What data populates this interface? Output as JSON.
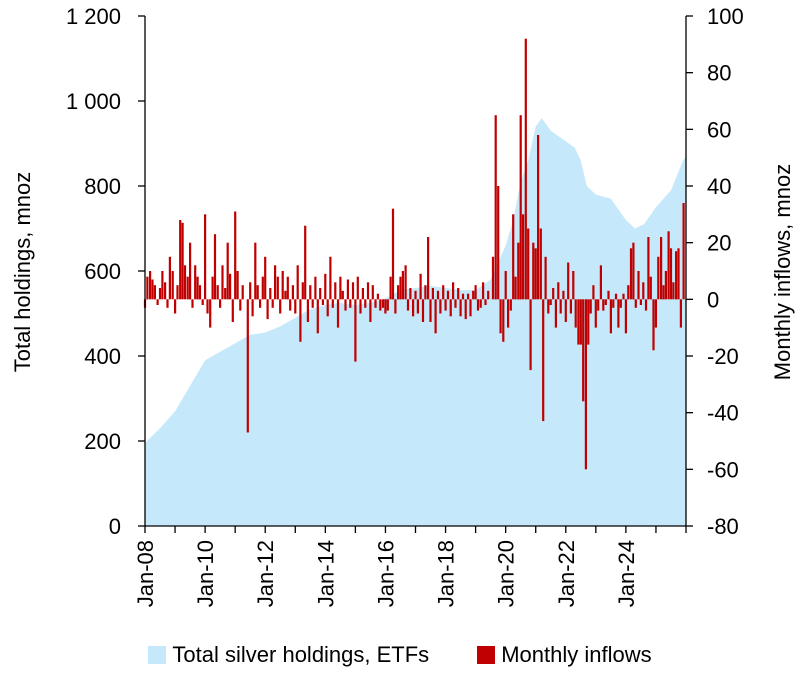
{
  "chart_data": {
    "type": "bar+area",
    "title": "",
    "x_tick_labels": [
      "Jan-08",
      "Jan-10",
      "Jan-12",
      "Jan-14",
      "Jan-16",
      "Jan-18",
      "Jan-20",
      "Jan-22",
      "Jan-24"
    ],
    "left_axis": {
      "label": "Total holdings, mnoz",
      "range": [
        0,
        1200
      ],
      "ticks": [
        0,
        200,
        400,
        600,
        800,
        1000,
        1200
      ],
      "tick_labels": [
        "0",
        "200",
        "400",
        "600",
        "800",
        "1 000",
        "1 200"
      ]
    },
    "right_axis": {
      "label": "Monthly inflows, mnoz",
      "range": [
        -80,
        100
      ],
      "ticks": [
        -80,
        -60,
        -40,
        -20,
        0,
        20,
        40,
        60,
        80,
        100
      ],
      "tick_labels": [
        "-80",
        "-60",
        "-40",
        "-20",
        "0",
        "20",
        "40",
        "60",
        "80",
        "100"
      ]
    },
    "x_range_years": [
      2008.0,
      2026.0
    ],
    "series": [
      {
        "name": "Total silver holdings, ETFs",
        "type": "area",
        "axis": "left",
        "color": "#c5e9fa",
        "points": [
          [
            2008.0,
            195
          ],
          [
            2008.5,
            230
          ],
          [
            2009.0,
            270
          ],
          [
            2009.5,
            330
          ],
          [
            2010.0,
            390
          ],
          [
            2010.5,
            410
          ],
          [
            2011.0,
            430
          ],
          [
            2011.5,
            450
          ],
          [
            2012.0,
            455
          ],
          [
            2012.5,
            470
          ],
          [
            2013.0,
            490
          ],
          [
            2013.5,
            510
          ],
          [
            2014.0,
            520
          ],
          [
            2014.5,
            525
          ],
          [
            2015.0,
            520
          ],
          [
            2015.5,
            525
          ],
          [
            2016.0,
            535
          ],
          [
            2016.5,
            555
          ],
          [
            2017.0,
            560
          ],
          [
            2017.5,
            565
          ],
          [
            2018.0,
            560
          ],
          [
            2018.5,
            555
          ],
          [
            2019.0,
            555
          ],
          [
            2019.5,
            580
          ],
          [
            2020.0,
            660
          ],
          [
            2020.25,
            720
          ],
          [
            2020.5,
            810
          ],
          [
            2020.75,
            860
          ],
          [
            2021.0,
            940
          ],
          [
            2021.2,
            960
          ],
          [
            2021.5,
            930
          ],
          [
            2022.0,
            905
          ],
          [
            2022.3,
            890
          ],
          [
            2022.5,
            860
          ],
          [
            2022.7,
            800
          ],
          [
            2023.0,
            780
          ],
          [
            2023.5,
            770
          ],
          [
            2024.0,
            720
          ],
          [
            2024.3,
            700
          ],
          [
            2024.6,
            710
          ],
          [
            2025.0,
            750
          ],
          [
            2025.5,
            790
          ],
          [
            2025.9,
            860
          ],
          [
            2026.0,
            870
          ]
        ]
      },
      {
        "name": "Monthly inflows",
        "type": "bar",
        "axis": "right",
        "color": "#c00000",
        "bars": [
          [
            2008.0,
            -3
          ],
          [
            2008.08,
            8
          ],
          [
            2008.17,
            10
          ],
          [
            2008.25,
            7
          ],
          [
            2008.33,
            5
          ],
          [
            2008.42,
            -2
          ],
          [
            2008.5,
            4
          ],
          [
            2008.58,
            10
          ],
          [
            2008.67,
            6
          ],
          [
            2008.75,
            -3
          ],
          [
            2008.83,
            15
          ],
          [
            2008.92,
            10
          ],
          [
            2009.0,
            -5
          ],
          [
            2009.08,
            5
          ],
          [
            2009.17,
            28
          ],
          [
            2009.25,
            27
          ],
          [
            2009.33,
            12
          ],
          [
            2009.42,
            8
          ],
          [
            2009.5,
            20
          ],
          [
            2009.58,
            -3
          ],
          [
            2009.67,
            12
          ],
          [
            2009.75,
            8
          ],
          [
            2009.83,
            5
          ],
          [
            2009.92,
            -2
          ],
          [
            2010.0,
            30
          ],
          [
            2010.08,
            -5
          ],
          [
            2010.17,
            -10
          ],
          [
            2010.25,
            8
          ],
          [
            2010.33,
            23
          ],
          [
            2010.42,
            5
          ],
          [
            2010.5,
            -3
          ],
          [
            2010.58,
            12
          ],
          [
            2010.67,
            4
          ],
          [
            2010.75,
            20
          ],
          [
            2010.83,
            9
          ],
          [
            2010.92,
            -8
          ],
          [
            2011.0,
            31
          ],
          [
            2011.08,
            10
          ],
          [
            2011.17,
            -4
          ],
          [
            2011.25,
            5
          ],
          [
            2011.42,
            -47
          ],
          [
            2011.5,
            6
          ],
          [
            2011.58,
            -6
          ],
          [
            2011.67,
            20
          ],
          [
            2011.75,
            5
          ],
          [
            2011.83,
            -3
          ],
          [
            2011.92,
            8
          ],
          [
            2012.0,
            15
          ],
          [
            2012.08,
            -7
          ],
          [
            2012.17,
            4
          ],
          [
            2012.25,
            -3
          ],
          [
            2012.33,
            12
          ],
          [
            2012.42,
            8
          ],
          [
            2012.5,
            -5
          ],
          [
            2012.58,
            10
          ],
          [
            2012.67,
            3
          ],
          [
            2012.75,
            8
          ],
          [
            2012.83,
            -4
          ],
          [
            2012.92,
            5
          ],
          [
            2013.0,
            -5
          ],
          [
            2013.08,
            12
          ],
          [
            2013.17,
            -15
          ],
          [
            2013.25,
            6
          ],
          [
            2013.33,
            26
          ],
          [
            2013.42,
            -8
          ],
          [
            2013.5,
            5
          ],
          [
            2013.58,
            -3
          ],
          [
            2013.67,
            8
          ],
          [
            2013.75,
            -12
          ],
          [
            2013.83,
            4
          ],
          [
            2013.92,
            -2
          ],
          [
            2014.0,
            9
          ],
          [
            2014.08,
            -6
          ],
          [
            2014.17,
            15
          ],
          [
            2014.25,
            -3
          ],
          [
            2014.33,
            6
          ],
          [
            2014.42,
            -10
          ],
          [
            2014.5,
            8
          ],
          [
            2014.58,
            3
          ],
          [
            2014.67,
            -4
          ],
          [
            2014.75,
            7
          ],
          [
            2014.83,
            -3
          ],
          [
            2014.92,
            6
          ],
          [
            2015.0,
            -22
          ],
          [
            2015.08,
            8
          ],
          [
            2015.17,
            -5
          ],
          [
            2015.25,
            4
          ],
          [
            2015.33,
            -3
          ],
          [
            2015.42,
            6
          ],
          [
            2015.5,
            -8
          ],
          [
            2015.58,
            5
          ],
          [
            2015.67,
            -3
          ],
          [
            2015.75,
            2
          ],
          [
            2015.83,
            -4
          ],
          [
            2015.92,
            -3
          ],
          [
            2016.0,
            -5
          ],
          [
            2016.08,
            -4
          ],
          [
            2016.17,
            8
          ],
          [
            2016.25,
            32
          ],
          [
            2016.33,
            -5
          ],
          [
            2016.42,
            5
          ],
          [
            2016.5,
            8
          ],
          [
            2016.58,
            10
          ],
          [
            2016.67,
            12
          ],
          [
            2016.75,
            -4
          ],
          [
            2016.83,
            4
          ],
          [
            2016.92,
            -6
          ],
          [
            2017.0,
            3
          ],
          [
            2017.08,
            -5
          ],
          [
            2017.17,
            9
          ],
          [
            2017.25,
            -8
          ],
          [
            2017.33,
            5
          ],
          [
            2017.42,
            22
          ],
          [
            2017.5,
            -8
          ],
          [
            2017.58,
            4
          ],
          [
            2017.67,
            -12
          ],
          [
            2017.75,
            3
          ],
          [
            2017.83,
            -5
          ],
          [
            2017.92,
            5
          ],
          [
            2018.0,
            -4
          ],
          [
            2018.08,
            3
          ],
          [
            2018.17,
            -6
          ],
          [
            2018.25,
            6
          ],
          [
            2018.33,
            -3
          ],
          [
            2018.42,
            4
          ],
          [
            2018.5,
            -6
          ],
          [
            2018.58,
            2
          ],
          [
            2018.67,
            -7
          ],
          [
            2018.75,
            2
          ],
          [
            2018.83,
            -6
          ],
          [
            2018.92,
            3
          ],
          [
            2019.0,
            5
          ],
          [
            2019.08,
            -4
          ],
          [
            2019.17,
            -3
          ],
          [
            2019.25,
            6
          ],
          [
            2019.33,
            -2
          ],
          [
            2019.42,
            3
          ],
          [
            2019.58,
            15
          ],
          [
            2019.67,
            65
          ],
          [
            2019.75,
            40
          ],
          [
            2019.83,
            -12
          ],
          [
            2019.92,
            -15
          ],
          [
            2020.0,
            10
          ],
          [
            2020.08,
            -10
          ],
          [
            2020.17,
            -4
          ],
          [
            2020.25,
            30
          ],
          [
            2020.33,
            8
          ],
          [
            2020.42,
            20
          ],
          [
            2020.5,
            65
          ],
          [
            2020.58,
            30
          ],
          [
            2020.67,
            92
          ],
          [
            2020.75,
            25
          ],
          [
            2020.83,
            -25
          ],
          [
            2020.92,
            20
          ],
          [
            2021.0,
            18
          ],
          [
            2021.08,
            58
          ],
          [
            2021.17,
            25
          ],
          [
            2021.25,
            -43
          ],
          [
            2021.33,
            15
          ],
          [
            2021.42,
            -5
          ],
          [
            2021.5,
            -2
          ],
          [
            2021.58,
            4
          ],
          [
            2021.67,
            -10
          ],
          [
            2021.75,
            6
          ],
          [
            2021.83,
            -5
          ],
          [
            2021.92,
            3
          ],
          [
            2022.0,
            -8
          ],
          [
            2022.08,
            13
          ],
          [
            2022.17,
            -5
          ],
          [
            2022.25,
            10
          ],
          [
            2022.33,
            -10
          ],
          [
            2022.42,
            -16
          ],
          [
            2022.5,
            -16
          ],
          [
            2022.58,
            -36
          ],
          [
            2022.67,
            -60
          ],
          [
            2022.75,
            -16
          ],
          [
            2022.83,
            -5
          ],
          [
            2022.92,
            5
          ],
          [
            2023.0,
            -10
          ],
          [
            2023.08,
            -4
          ],
          [
            2023.17,
            12
          ],
          [
            2023.25,
            -4
          ],
          [
            2023.33,
            -2
          ],
          [
            2023.42,
            3
          ],
          [
            2023.5,
            -12
          ],
          [
            2023.58,
            -3
          ],
          [
            2023.67,
            2
          ],
          [
            2023.75,
            -10
          ],
          [
            2023.83,
            -3
          ],
          [
            2023.92,
            2
          ],
          [
            2024.0,
            -12
          ],
          [
            2024.08,
            5
          ],
          [
            2024.17,
            18
          ],
          [
            2024.25,
            20
          ],
          [
            2024.33,
            -3
          ],
          [
            2024.42,
            10
          ],
          [
            2024.5,
            -2
          ],
          [
            2024.58,
            6
          ],
          [
            2024.67,
            -4
          ],
          [
            2024.75,
            22
          ],
          [
            2024.83,
            8
          ],
          [
            2024.92,
            -18
          ],
          [
            2025.0,
            -10
          ],
          [
            2025.08,
            15
          ],
          [
            2025.17,
            22
          ],
          [
            2025.25,
            5
          ],
          [
            2025.33,
            10
          ],
          [
            2025.42,
            24
          ],
          [
            2025.5,
            18
          ],
          [
            2025.58,
            6
          ],
          [
            2025.67,
            17
          ],
          [
            2025.75,
            18
          ],
          [
            2025.83,
            -10
          ],
          [
            2025.92,
            34
          ]
        ]
      }
    ]
  }
}
